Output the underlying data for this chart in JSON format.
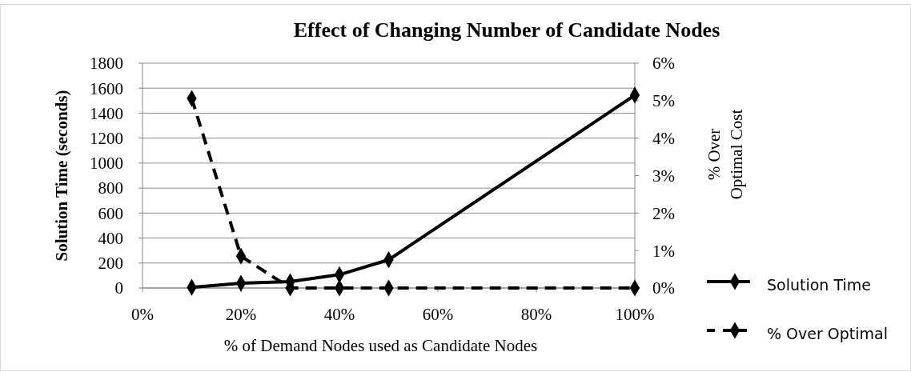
{
  "chart_data": {
    "type": "line",
    "title": "Effect of Changing Number of Candidate Nodes",
    "xlabel": "% of Demand Nodes used as Candidate Nodes",
    "ylabel": "Solution Time (seconds)",
    "y2label": "% Over\nOptimal Cost",
    "x": [
      10,
      20,
      30,
      40,
      50,
      100
    ],
    "series": [
      {
        "name": "Solution Time",
        "color": "#000000",
        "values": [
          5,
          38,
          51,
          107,
          226,
          1544
        ],
        "line_style": "solid"
      },
      {
        "name": "% Over Optimal",
        "color": "#000000",
        "values": [
          5.06,
          0.85,
          0,
          0,
          0,
          0
        ],
        "axis": "y2",
        "line_style": "dashed"
      }
    ],
    "xlim": [
      0,
      100
    ],
    "xticks": [
      {
        "value": 0,
        "label": "0%"
      },
      {
        "value": 20,
        "label": "20%"
      },
      {
        "value": 40,
        "label": "40%"
      },
      {
        "value": 60,
        "label": "60%"
      },
      {
        "value": 80,
        "label": "80%"
      },
      {
        "value": 100,
        "label": "100%"
      }
    ],
    "ylim": [
      0,
      1800
    ],
    "yticks": [
      0,
      200,
      400,
      600,
      800,
      1000,
      1200,
      1400,
      1600,
      1800
    ],
    "y2lim": [
      0,
      6
    ],
    "y2ticks": [
      {
        "value": 0,
        "label": "0%"
      },
      {
        "value": 1,
        "label": "1%"
      },
      {
        "value": 2,
        "label": "2%"
      },
      {
        "value": 3,
        "label": "3%"
      },
      {
        "value": 4,
        "label": "4%"
      },
      {
        "value": 5,
        "label": "5%"
      },
      {
        "value": 6,
        "label": "6%"
      }
    ],
    "marker": "diamond",
    "legend": "right",
    "grid": "y"
  }
}
